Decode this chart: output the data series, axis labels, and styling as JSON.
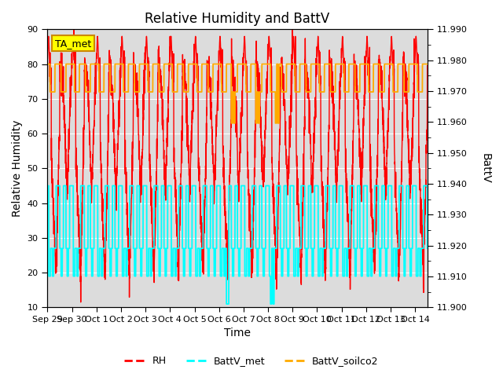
{
  "title": "Relative Humidity and BattV",
  "xlabel": "Time",
  "ylabel_left": "Relative Humidity",
  "ylabel_right": "BattV",
  "ylim_left": [
    10,
    90
  ],
  "ylim_right": [
    11.9,
    11.99
  ],
  "yticks_left": [
    10,
    20,
    30,
    40,
    50,
    60,
    70,
    80,
    90
  ],
  "yticks_right": [
    11.9,
    11.91,
    11.92,
    11.93,
    11.94,
    11.95,
    11.96,
    11.97,
    11.98,
    11.99
  ],
  "xtick_labels": [
    "Sep 29",
    "Sep 30",
    "Oct 1",
    "Oct 2",
    "Oct 3",
    "Oct 4",
    "Oct 5",
    "Oct 6",
    "Oct 7",
    "Oct 8",
    "Oct 9",
    "Oct 10",
    "Oct 11",
    "Oct 12",
    "Oct 13",
    "Oct 14"
  ],
  "rh_color": "#ff0000",
  "battv_met_color": "#00ffff",
  "battv_soilco2_color": "#ffaa00",
  "annotation_text": "TA_met",
  "annotation_bg": "#ffff00",
  "annotation_border": "#cc8800",
  "background_color": "#dcdcdc",
  "title_fontsize": 12,
  "axis_label_fontsize": 10,
  "tick_fontsize": 8,
  "figsize": [
    6.4,
    4.8
  ],
  "dpi": 100
}
